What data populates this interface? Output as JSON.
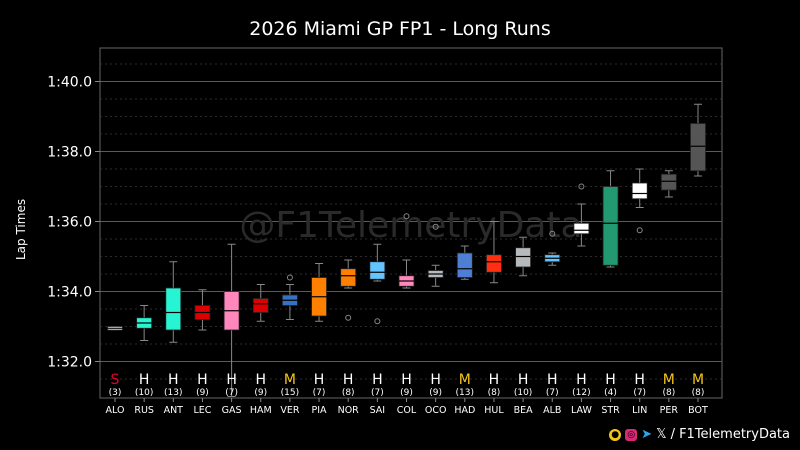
{
  "chart_data": {
    "type": "box",
    "title": "2026 Miami GP FP1 - Long Runs",
    "ylabel": "Lap Times",
    "yticks": [
      "1:32.0",
      "1:34.0",
      "1:36.0",
      "1:38.0",
      "1:40.0"
    ],
    "ylim": [
      91.0,
      101.0
    ],
    "watermark": "@F1TelemetryData",
    "drivers": [
      {
        "code": "ALO",
        "compound": "S",
        "laps": "(3)",
        "color": "#ffffff",
        "min": 92.9,
        "q1": 92.9,
        "median": 92.95,
        "q3": 93.0,
        "max": 93.0,
        "outliers": []
      },
      {
        "code": "RUS",
        "compound": "H",
        "laps": "(10)",
        "color": "#27f4d2",
        "min": 92.6,
        "q1": 92.95,
        "median": 93.1,
        "q3": 93.25,
        "max": 93.6,
        "outliers": []
      },
      {
        "code": "ANT",
        "compound": "H",
        "laps": "(13)",
        "color": "#27f4d2",
        "min": 92.55,
        "q1": 92.9,
        "median": 93.4,
        "q3": 94.1,
        "max": 94.85,
        "outliers": []
      },
      {
        "code": "LEC",
        "compound": "H",
        "laps": "(9)",
        "color": "#dc0000",
        "min": 92.9,
        "q1": 93.2,
        "median": 93.4,
        "q3": 93.6,
        "max": 94.05,
        "outliers": []
      },
      {
        "code": "GAS",
        "compound": "H",
        "laps": "(7)",
        "color": "#ff87bc",
        "min": 91.0,
        "q1": 92.9,
        "median": 93.45,
        "q3": 94.0,
        "max": 95.35,
        "outliers": []
      },
      {
        "code": "HAM",
        "compound": "H",
        "laps": "(9)",
        "color": "#dc0000",
        "min": 93.15,
        "q1": 93.4,
        "median": 93.65,
        "q3": 93.8,
        "max": 94.2,
        "outliers": []
      },
      {
        "code": "VER",
        "compound": "M",
        "laps": "(15)",
        "color": "#3671c6",
        "min": 93.2,
        "q1": 93.6,
        "median": 93.75,
        "q3": 93.9,
        "max": 94.2,
        "outliers": [
          94.4
        ]
      },
      {
        "code": "PIA",
        "compound": "H",
        "laps": "(7)",
        "color": "#ff8000",
        "min": 93.15,
        "q1": 93.3,
        "median": 93.85,
        "q3": 94.4,
        "max": 94.8,
        "outliers": []
      },
      {
        "code": "NOR",
        "compound": "H",
        "laps": "(8)",
        "color": "#ff8000",
        "min": 94.1,
        "q1": 94.15,
        "median": 94.45,
        "q3": 94.65,
        "max": 94.9,
        "outliers": [
          93.25
        ]
      },
      {
        "code": "SAI",
        "compound": "H",
        "laps": "(7)",
        "color": "#64c4ff",
        "min": 94.3,
        "q1": 94.35,
        "median": 94.55,
        "q3": 94.85,
        "max": 95.35,
        "outliers": [
          93.15
        ]
      },
      {
        "code": "COL",
        "compound": "H",
        "laps": "(9)",
        "color": "#ff87bc",
        "min": 94.1,
        "q1": 94.15,
        "median": 94.3,
        "q3": 94.45,
        "max": 94.9,
        "outliers": [
          96.15
        ]
      },
      {
        "code": "OCO",
        "compound": "H",
        "laps": "(9)",
        "color": "#b6babd",
        "min": 94.15,
        "q1": 94.4,
        "median": 94.5,
        "q3": 94.6,
        "max": 94.75,
        "outliers": [
          95.85
        ]
      },
      {
        "code": "HAD",
        "compound": "M",
        "laps": "(13)",
        "color": "#4f7fd4",
        "min": 94.35,
        "q1": 94.4,
        "median": 94.65,
        "q3": 95.1,
        "max": 95.3,
        "outliers": []
      },
      {
        "code": "HUL",
        "compound": "H",
        "laps": "(8)",
        "color": "#ff3010",
        "min": 94.25,
        "q1": 94.55,
        "median": 94.85,
        "q3": 95.05,
        "max": 96.0,
        "outliers": []
      },
      {
        "code": "BEA",
        "compound": "H",
        "laps": "(10)",
        "color": "#b6babd",
        "min": 94.45,
        "q1": 94.7,
        "median": 95.0,
        "q3": 95.25,
        "max": 95.55,
        "outliers": []
      },
      {
        "code": "ALB",
        "compound": "H",
        "laps": "(7)",
        "color": "#64c4ff",
        "min": 94.75,
        "q1": 94.85,
        "median": 94.95,
        "q3": 95.05,
        "max": 95.1,
        "outliers": [
          95.65
        ]
      },
      {
        "code": "LAW",
        "compound": "H",
        "laps": "(12)",
        "color": "#ffffff",
        "min": 95.3,
        "q1": 95.65,
        "median": 95.75,
        "q3": 95.95,
        "max": 96.5,
        "outliers": [
          97.0
        ]
      },
      {
        "code": "STR",
        "compound": "H",
        "laps": "(4)",
        "color": "#229971",
        "min": 94.7,
        "q1": 94.75,
        "median": 95.95,
        "q3": 97.0,
        "max": 97.45,
        "outliers": []
      },
      {
        "code": "LIN",
        "compound": "H",
        "laps": "(7)",
        "color": "#ffffff",
        "min": 96.4,
        "q1": 96.65,
        "median": 96.8,
        "q3": 97.1,
        "max": 97.5,
        "outliers": [
          95.75
        ]
      },
      {
        "code": "PER",
        "compound": "M",
        "laps": "(8)",
        "color": "#555555",
        "min": 96.7,
        "q1": 96.9,
        "median": 97.15,
        "q3": 97.35,
        "max": 97.45,
        "outliers": []
      },
      {
        "code": "BOT",
        "compound": "M",
        "laps": "(8)",
        "color": "#555555",
        "min": 97.3,
        "q1": 97.45,
        "median": 98.15,
        "q3": 98.8,
        "max": 99.35,
        "outliers": []
      }
    ],
    "compound_colors": {
      "S": "#e8002d",
      "M": "#f5c518",
      "H": "#ffffff"
    }
  },
  "footer": {
    "handle": "/ F1TelemetryData",
    "x_glyph": "𝕏"
  }
}
